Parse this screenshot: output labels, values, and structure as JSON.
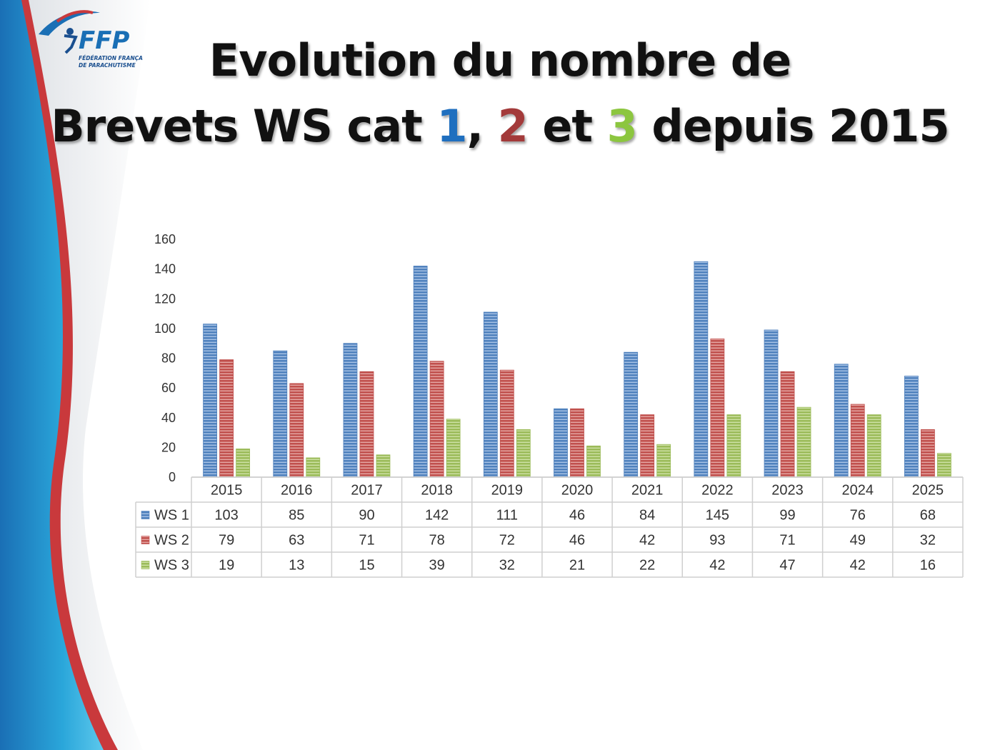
{
  "logo": {
    "text": "FFP",
    "subtitle_line1": "FÉDÉRATION FRANÇAISE",
    "subtitle_line2": "DE PARACHUTISME"
  },
  "title": {
    "line1": "Evolution du nombre de",
    "line2_prefix": "Brevets WS cat ",
    "n1": "1",
    "sep1": ", ",
    "n2": "2",
    "sep2": " et ",
    "n3": "3",
    "line2_suffix": " depuis 2015"
  },
  "colors": {
    "ws1": "#4f81bd",
    "ws2": "#c0504d",
    "ws3": "#9bbb59",
    "title_1": "#1f6fbf",
    "title_2": "#a33a3a",
    "title_3": "#8cc63f"
  },
  "chart_data": {
    "type": "bar",
    "categories": [
      "2015",
      "2016",
      "2017",
      "2018",
      "2019",
      "2020",
      "2021",
      "2022",
      "2023",
      "2024",
      "2025"
    ],
    "series": [
      {
        "name": "WS 1",
        "values": [
          103,
          85,
          90,
          142,
          111,
          46,
          84,
          145,
          99,
          76,
          68
        ]
      },
      {
        "name": "WS 2",
        "values": [
          79,
          63,
          71,
          78,
          72,
          46,
          42,
          93,
          71,
          49,
          32
        ]
      },
      {
        "name": "WS 3",
        "values": [
          19,
          13,
          15,
          39,
          32,
          21,
          22,
          42,
          47,
          42,
          16
        ]
      }
    ],
    "ylim": [
      0,
      160
    ],
    "yticks": [
      0,
      20,
      40,
      60,
      80,
      100,
      120,
      140,
      160
    ],
    "grid": false,
    "legend": "data-table-left",
    "data_table": true
  }
}
